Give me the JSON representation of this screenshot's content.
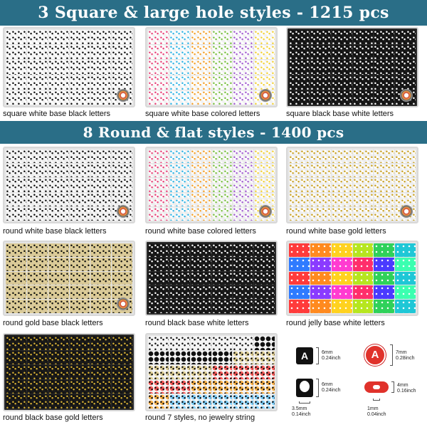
{
  "banners": {
    "square": "3 Square & large hole styles - 1215 pcs",
    "round": "8 Round & flat styles - 1400 pcs"
  },
  "products": [
    {
      "caption": "square white base black letters",
      "base": "#f2f2f2",
      "bead": "#ffffff",
      "letter": "#111111",
      "shape": "square"
    },
    {
      "caption": "square white base colored letters",
      "base": "#f2f2f2",
      "bead": "#ffffff",
      "letter": "multi",
      "shape": "square"
    },
    {
      "caption": "square black base white letters",
      "base": "#1a1a1a",
      "bead": "#111111",
      "letter": "#ffffff",
      "shape": "square"
    },
    {
      "caption": "round white base black letters",
      "base": "#eeeeee",
      "bead": "#ffffff",
      "letter": "#111111",
      "shape": "round"
    },
    {
      "caption": "round white base colored letters",
      "base": "#eeeeee",
      "bead": "#ffffff",
      "letter": "multi",
      "shape": "round"
    },
    {
      "caption": "round white base gold letters",
      "base": "#eeeeee",
      "bead": "#ffffff",
      "letter": "#c9a227",
      "shape": "round"
    },
    {
      "caption": "round gold base black letters",
      "base": "#d9c99a",
      "bead": "#e0cf93",
      "letter": "#111111",
      "shape": "round"
    },
    {
      "caption": "round black base white letters",
      "base": "#1a1a1a",
      "bead": "#111111",
      "letter": "#ffffff",
      "shape": "round"
    },
    {
      "caption": "round jelly base white letters",
      "base": "#ffffff",
      "bead": "jelly",
      "letter": "#ffffff",
      "shape": "round"
    },
    {
      "caption": "round black base gold letters",
      "base": "#1a1a1a",
      "bead": "#111111",
      "letter": "#d4af37",
      "shape": "round"
    },
    {
      "caption": "round 7 styles, no jewelry string",
      "base": "#f4f4f4",
      "bead": "mixed",
      "letter": "#111111",
      "shape": "round"
    }
  ],
  "spec": {
    "square_letter": "A",
    "round_letter": "A",
    "square_size_mm": "6mm",
    "square_size_in": "0.24inch",
    "round_size_mm": "7mm",
    "round_size_in": "0.28inch",
    "square_side_mm": "6mm",
    "square_side_in": "0.24inch",
    "round_side_mm": "4mm",
    "round_side_in": "0.16inch",
    "square_hole_mm": "3.5mm",
    "square_hole_in": "0.14inch",
    "round_hole_mm": "1mm",
    "round_hole_in": "0.04inch"
  }
}
